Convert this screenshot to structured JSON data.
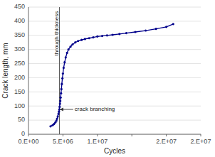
{
  "chart_data": {
    "type": "line",
    "x_label": "Cycles",
    "y_label": "Crack length, mm",
    "x": [
      3200000,
      3500000,
      3700000,
      3900000,
      4050000,
      4150000,
      4250000,
      4350000,
      4420000,
      4470000,
      4520000,
      4570000,
      4620000,
      4670000,
      4720000,
      4780000,
      4840000,
      4920000,
      5000000,
      5100000,
      5250000,
      5400000,
      5600000,
      5800000,
      6100000,
      6400000,
      6800000,
      7200000,
      7700000,
      8200000,
      8800000,
      9400000,
      10000000,
      10700000,
      11400000,
      12200000,
      13200000,
      14200000,
      15500000,
      17000000,
      18500000,
      20000000,
      21000000
    ],
    "values": [
      28,
      32,
      36,
      42,
      48,
      55,
      63,
      72,
      80,
      88,
      97,
      108,
      118,
      130,
      145,
      160,
      178,
      198,
      215,
      235,
      255,
      272,
      288,
      300,
      310,
      318,
      325,
      330,
      334,
      337,
      340,
      343,
      346,
      348,
      350,
      352,
      355,
      358,
      362,
      367,
      373,
      380,
      390
    ],
    "color": "#00008B",
    "marker": "circle",
    "xlim": [
      0,
      25000000
    ],
    "ylim": [
      0,
      450
    ],
    "xticks": [
      {
        "value": 0,
        "label": "0.E+00"
      },
      {
        "value": 5000000,
        "label": "5.E+06"
      },
      {
        "value": 10000000,
        "label": "1.E+07"
      },
      {
        "value": 15000000,
        "label": null
      },
      {
        "value": 20000000,
        "label": "2.E+07"
      },
      {
        "value": 25000000,
        "label": "2.E+07"
      }
    ],
    "yticks": [
      0,
      50,
      100,
      150,
      200,
      250,
      300,
      350,
      400,
      450
    ],
    "grid": true,
    "vline": {
      "x": 4500000,
      "color": "#555555"
    },
    "annotations": [
      {
        "text": "through thickness",
        "x": 4300000,
        "y": 278
      },
      {
        "text": "crack branching",
        "x": 6700000,
        "y": 88,
        "arrow_x": 4500000,
        "arrow_y": 88
      }
    ]
  }
}
